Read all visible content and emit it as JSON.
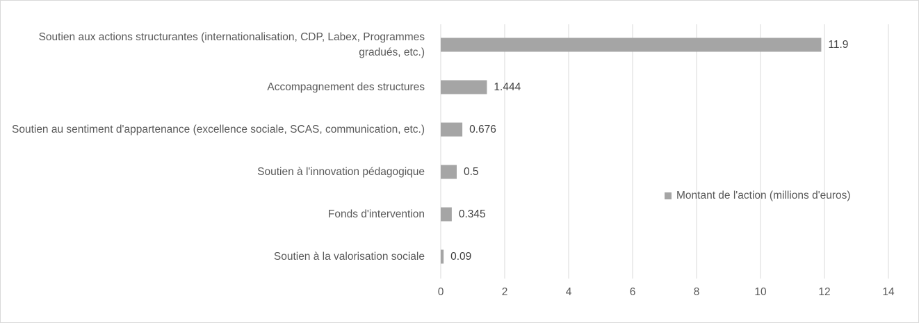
{
  "chart_data": {
    "type": "bar",
    "orientation": "horizontal",
    "categories": [
      "Soutien aux actions structurantes (internationalisation, CDP, Labex, Programmes gradués, etc.)",
      "Accompagnement des structures",
      "Soutien au sentiment d'appartenance (excellence sociale, SCAS, communication, etc.)",
      "Soutien à l'innovation pédagogique",
      "Fonds d'intervention",
      "Soutien à la valorisation sociale"
    ],
    "series": [
      {
        "name": "Montant de l'action (millions d'euros)",
        "color": "#a5a5a5",
        "values": [
          11.9,
          1.444,
          0.676,
          0.5,
          0.345,
          0.09
        ]
      }
    ],
    "xlim": [
      0,
      14
    ],
    "xticks": [
      0,
      2,
      4,
      6,
      8,
      10,
      12,
      14
    ],
    "grid": true,
    "legend": "right"
  }
}
